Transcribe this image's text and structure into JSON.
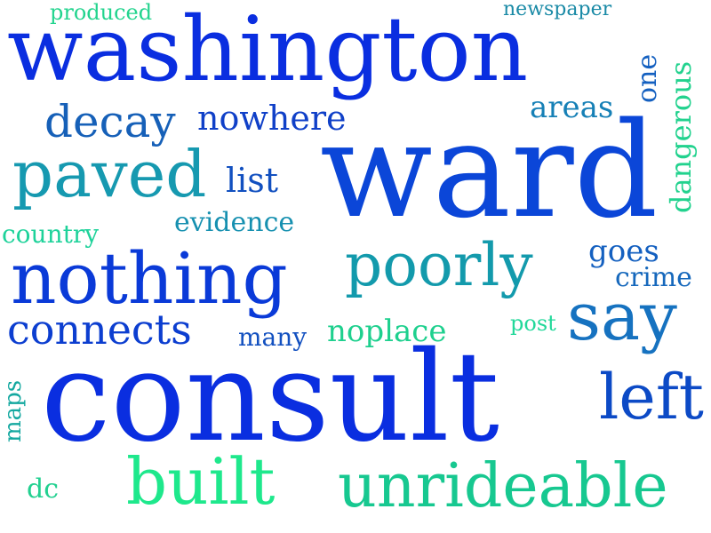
{
  "words": {
    "washington": {
      "text": "washington",
      "color": "#0a2ee0"
    },
    "ward": {
      "text": "ward",
      "color": "#0b46d8"
    },
    "consult": {
      "text": "consult",
      "color": "#0a2ee0"
    },
    "nothing": {
      "text": "nothing",
      "color": "#0a3ad8"
    },
    "paved": {
      "text": "paved",
      "color": "#1699b0"
    },
    "poorly": {
      "text": "poorly",
      "color": "#139aac"
    },
    "say": {
      "text": "say",
      "color": "#1672c0"
    },
    "unrideable": {
      "text": "unrideable",
      "color": "#17c890"
    },
    "built": {
      "text": "built",
      "color": "#1ee88c"
    },
    "left": {
      "text": "left",
      "color": "#0c4ac6"
    },
    "connects": {
      "text": "connects",
      "color": "#0c3ed0"
    },
    "decay": {
      "text": "decay",
      "color": "#1660b8"
    },
    "nowhere": {
      "text": "nowhere",
      "color": "#1040c8"
    },
    "noplace": {
      "text": "noplace",
      "color": "#1ed08e"
    },
    "many": {
      "text": "many",
      "color": "#1250c0"
    },
    "areas": {
      "text": "areas",
      "color": "#1680b6"
    },
    "list": {
      "text": "list",
      "color": "#1250c0"
    },
    "evidence": {
      "text": "evidence",
      "color": "#1690b0"
    },
    "country": {
      "text": "country",
      "color": "#1ed29a"
    },
    "goes": {
      "text": "goes",
      "color": "#1460c0"
    },
    "crime": {
      "text": "crime",
      "color": "#1668bc"
    },
    "post": {
      "text": "post",
      "color": "#22d89a"
    },
    "produced": {
      "text": "produced",
      "color": "#22d48e"
    },
    "newspaper": {
      "text": "newspaper",
      "color": "#1a8aa6"
    },
    "one": {
      "text": "one",
      "color": "#1460c0"
    },
    "dangerous": {
      "text": "dangerous",
      "color": "#22d28e"
    },
    "maps": {
      "text": "maps",
      "color": "#14a8a0"
    },
    "dc": {
      "text": "dc",
      "color": "#22d090"
    }
  }
}
